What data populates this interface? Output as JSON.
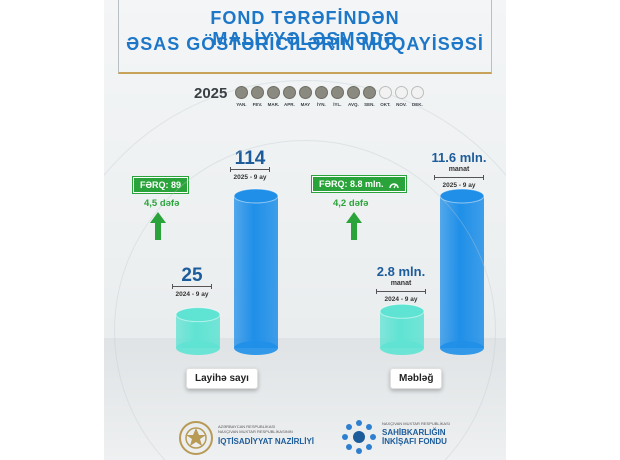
{
  "header": {
    "line1": "FOND TƏRƏFİNDƏN MALİYYƏLƏŞMƏDƏ",
    "line2": "ƏSAS GÖSTƏRİCİLƏRİN MÜQAYİSƏSİ"
  },
  "timeline": {
    "year": "2025",
    "months": [
      "YAN.",
      "FEV.",
      "MAR.",
      "APR.",
      "MAY",
      "İYN.",
      "İYL.",
      "AVQ.",
      "SEN.",
      "OKT.",
      "NOV.",
      "DEK."
    ],
    "active_count": 9
  },
  "chart_data": [
    {
      "type": "bar",
      "xlabel": "Layihə sayı",
      "categories": [
        "2024 - 9 ay",
        "2025 - 9 ay"
      ],
      "values": [
        25,
        114
      ],
      "value_labels": [
        "25",
        "114"
      ],
      "unit": "",
      "difference_label": "FƏRQ: 89",
      "ratio_label": "4,5 dəfə",
      "colors": [
        "#5fe3d3",
        "#1f8fe8"
      ]
    },
    {
      "type": "bar",
      "xlabel": "Məbləğ",
      "categories": [
        "2024 - 9 ay",
        "2025 - 9 ay"
      ],
      "values": [
        2.8,
        11.6
      ],
      "value_labels": [
        "2.8 mln.",
        "11.6 mln."
      ],
      "unit": "manat",
      "difference_label": "FƏRQ: 8.8 mln.",
      "ratio_label": "4,2 dəfə",
      "colors": [
        "#5fe3d3",
        "#1f8fe8"
      ]
    }
  ],
  "footer": {
    "left_small": "AZƏRBAYCAN RESPUBLİKASI\nNAXÇIVAN MUXTAR RESPUBLİKASININ",
    "left_big": "İQTİSADİYYAT NAZİRLİYİ",
    "right_small": "NAXÇIVAN MUXTAR RESPUBLİKASI",
    "right_big": "SAHİBKARLIĞIN\nİNKİŞAFI FONDU"
  }
}
